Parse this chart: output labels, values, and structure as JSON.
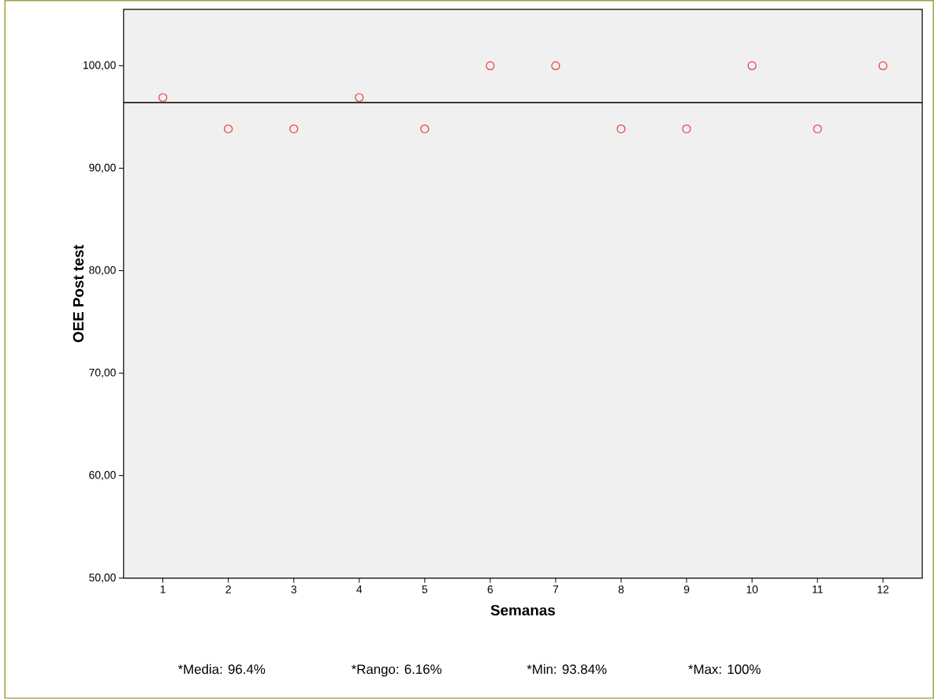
{
  "chart_data": {
    "type": "scatter",
    "xlabel": "Semanas",
    "ylabel": "OEE Post test",
    "categories": [
      "1",
      "2",
      "3",
      "4",
      "5",
      "6",
      "7",
      "8",
      "9",
      "10",
      "11",
      "12"
    ],
    "values": [
      96.9,
      93.84,
      93.84,
      96.9,
      93.84,
      100,
      100,
      93.84,
      93.84,
      100,
      93.84,
      100
    ],
    "color": "#ee3b3b",
    "marker": "circle",
    "ylim": [
      50,
      105.5
    ],
    "yticks": [
      {
        "value": 50,
        "label": "50,00"
      },
      {
        "value": 60,
        "label": "60,00"
      },
      {
        "value": 70,
        "label": "70,00"
      },
      {
        "value": 80,
        "label": "80,00"
      },
      {
        "value": 90,
        "label": "90,00"
      },
      {
        "value": 100,
        "label": "100,00"
      }
    ],
    "ref_lines": [
      {
        "axis": "y",
        "value": 96.4,
        "color": "#000000"
      }
    ],
    "grid": false,
    "annotations": [
      "*Media: 96.4%",
      "*Rango: 6.16%",
      "*Min: 93.84%",
      "*Max: 100%"
    ]
  }
}
